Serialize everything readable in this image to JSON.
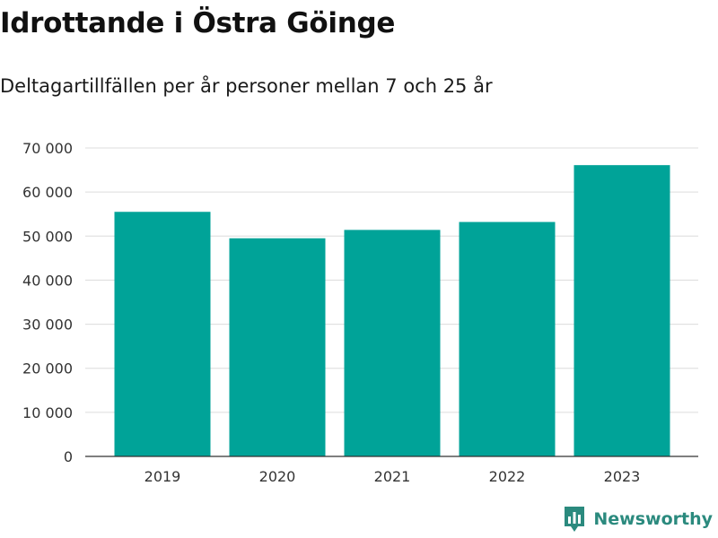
{
  "header": {
    "title": "Idrottande i Östra Göinge",
    "subtitle": "Deltagartillfällen per år personer mellan 7 och 25 år"
  },
  "brand": {
    "name": "Newsworthy",
    "icon": "newsworthy-logo-icon",
    "color": "#2b8a7e"
  },
  "chart_data": {
    "type": "bar",
    "title": "Idrottande i Östra Göinge",
    "subtitle": "Deltagartillfällen per år personer mellan 7 och 25 år",
    "xlabel": "",
    "ylabel": "",
    "categories": [
      "2019",
      "2020",
      "2021",
      "2022",
      "2023"
    ],
    "values": [
      55500,
      49500,
      51400,
      53200,
      66100
    ],
    "ylim": [
      0,
      70000
    ],
    "yticks": [
      0,
      10000,
      20000,
      30000,
      40000,
      50000,
      60000,
      70000
    ],
    "ytick_labels": [
      "0",
      "10 000",
      "20 000",
      "30 000",
      "40 000",
      "50 000",
      "60 000",
      "70 000"
    ],
    "grid": true,
    "legend": "none",
    "bar_color": "#00a398"
  }
}
